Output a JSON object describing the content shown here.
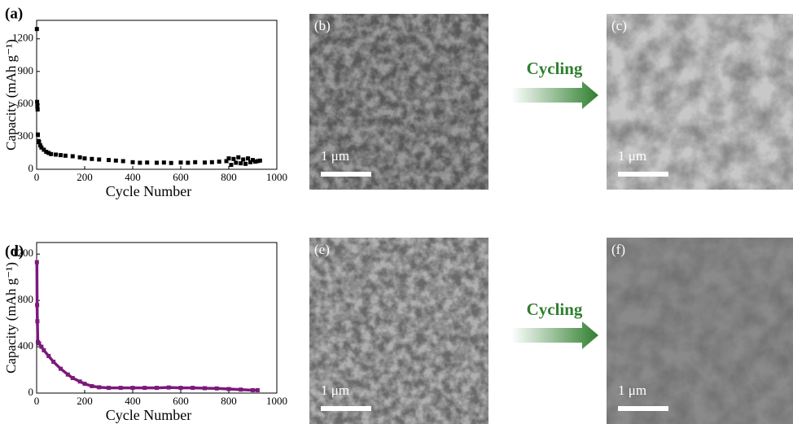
{
  "chart_data": [
    {
      "type": "scatter",
      "panel_label": "(a)",
      "x_label": "Cycle Number",
      "y_label": "Capacity (mAh g⁻¹)",
      "color": "#000000",
      "x": [
        1,
        2,
        3,
        4,
        5,
        8,
        10,
        15,
        20,
        30,
        40,
        50,
        60,
        80,
        100,
        120,
        150,
        180,
        200,
        230,
        260,
        300,
        330,
        360,
        400,
        430,
        460,
        500,
        530,
        560,
        600,
        630,
        660,
        700,
        730,
        760,
        790,
        800,
        810,
        820,
        830,
        840,
        850,
        860,
        870,
        880,
        890,
        900,
        910,
        920,
        930
      ],
      "values": [
        1290,
        620,
        580,
        550,
        320,
        260,
        250,
        220,
        200,
        180,
        160,
        150,
        140,
        135,
        130,
        125,
        120,
        110,
        100,
        95,
        90,
        85,
        80,
        75,
        65,
        60,
        62,
        60,
        62,
        58,
        62,
        60,
        65,
        62,
        65,
        70,
        75,
        100,
        40,
        95,
        60,
        110,
        55,
        90,
        50,
        100,
        65,
        85,
        70,
        75,
        80
      ],
      "xlim": [
        0,
        1000
      ],
      "xticks": [
        0,
        200,
        400,
        600,
        800,
        1000
      ],
      "ylim": [
        0,
        1370
      ],
      "yticks": [
        0,
        300,
        600,
        900,
        1200
      ]
    },
    {
      "type": "line",
      "panel_label": "(d)",
      "x_label": "Cycle Number",
      "y_label": "Capacity (mAh g⁻¹)",
      "color": "#7b1a7b",
      "x": [
        1,
        2,
        3,
        5,
        10,
        20,
        30,
        50,
        70,
        100,
        130,
        150,
        180,
        200,
        230,
        260,
        300,
        350,
        400,
        450,
        500,
        550,
        600,
        650,
        700,
        750,
        800,
        850,
        900,
        920
      ],
      "values": [
        1130,
        760,
        620,
        440,
        430,
        400,
        370,
        320,
        270,
        210,
        160,
        130,
        100,
        80,
        60,
        50,
        45,
        45,
        45,
        45,
        45,
        48,
        45,
        45,
        42,
        40,
        35,
        30,
        25,
        25
      ],
      "xlim": [
        0,
        1000
      ],
      "xticks": [
        0,
        200,
        400,
        600,
        800,
        1000
      ],
      "ylim": [
        0,
        1300
      ],
      "yticks": [
        0,
        400,
        800,
        1200
      ]
    }
  ],
  "images": [
    {
      "label": "(b)",
      "scale_bar": "1 μm"
    },
    {
      "label": "(c)",
      "scale_bar": "1 μm"
    },
    {
      "label": "(e)",
      "scale_bar": "1 μm"
    },
    {
      "label": "(f)",
      "scale_bar": "1 μm"
    }
  ],
  "arrows": [
    {
      "label": "Cycling"
    },
    {
      "label": "Cycling"
    }
  ]
}
